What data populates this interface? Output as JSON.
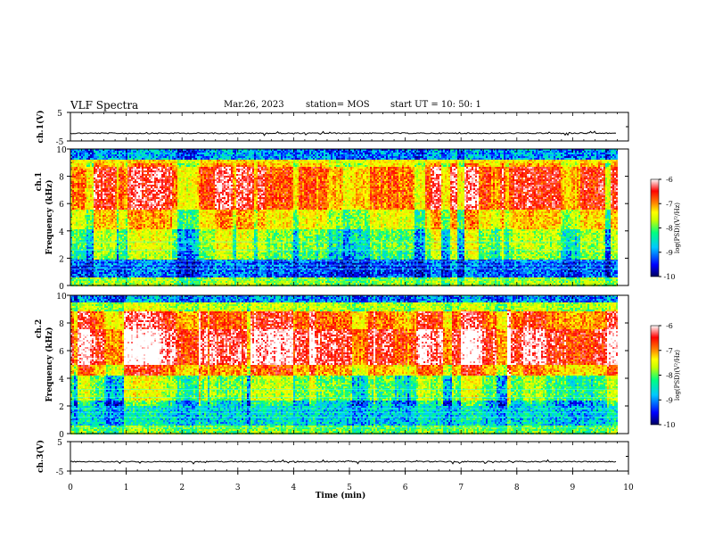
{
  "header": {
    "title": "VLF Spectra",
    "date": "Mar.26, 2023",
    "station": "station= MOS",
    "start": "start  UT =   10: 50: 1"
  },
  "chart_data": [
    {
      "type": "line",
      "id": "waveform-ch1",
      "ylabel": "ch.1(V)",
      "ylim": [
        -5,
        5
      ],
      "yticks": [
        5,
        -5
      ],
      "xlim": [
        0,
        10
      ],
      "baseline": -2.3,
      "xmax_data": 9.8
    },
    {
      "type": "heatmap",
      "id": "spectrogram-ch1",
      "ylabel": "ch.1",
      "ylabel2": "Frequency (kHz)",
      "ylim": [
        0,
        10
      ],
      "yticks": [
        0,
        2,
        4,
        6,
        8,
        10
      ],
      "xlim": [
        0,
        10
      ],
      "xmax_data": 9.8,
      "bands": [
        {
          "f0": 0.0,
          "f1": 0.6,
          "level": -8.2
        },
        {
          "f0": 0.6,
          "f1": 1.9,
          "level": -9.4
        },
        {
          "f0": 1.9,
          "f1": 2.6,
          "level": -8.6
        },
        {
          "f0": 2.6,
          "f1": 4.2,
          "level": -8.4
        },
        {
          "f0": 4.2,
          "f1": 5.6,
          "level": -7.8
        },
        {
          "f0": 5.6,
          "f1": 8.7,
          "level": -7.0
        },
        {
          "f0": 8.7,
          "f1": 9.3,
          "level": -7.6
        },
        {
          "f0": 9.3,
          "f1": 10.0,
          "level": -9.2
        }
      ],
      "colorbar": {
        "label": "log(PSD)(V²/Hz)",
        "ticks": [
          -6,
          -7,
          -8,
          -9,
          -10
        ],
        "range": [
          -10,
          -6
        ]
      }
    },
    {
      "type": "heatmap",
      "id": "spectrogram-ch2",
      "ylabel": "ch.2",
      "ylabel2": "Frequency (kHz)",
      "ylim": [
        0,
        10
      ],
      "yticks": [
        0,
        2,
        4,
        6,
        8,
        10
      ],
      "xlim": [
        0,
        10
      ],
      "xmax_data": 9.8,
      "bands": [
        {
          "f0": 0.0,
          "f1": 0.7,
          "level": -8.3
        },
        {
          "f0": 0.7,
          "f1": 2.4,
          "level": -8.9
        },
        {
          "f0": 2.4,
          "f1": 4.2,
          "level": -8.3
        },
        {
          "f0": 4.2,
          "f1": 5.0,
          "level": -7.2
        },
        {
          "f0": 5.0,
          "f1": 7.6,
          "level": -6.4
        },
        {
          "f0": 7.6,
          "f1": 8.9,
          "level": -6.9
        },
        {
          "f0": 8.9,
          "f1": 9.6,
          "level": -8.0
        },
        {
          "f0": 9.6,
          "f1": 10.0,
          "level": -9.2
        }
      ],
      "colorbar": {
        "label": "log(PSD)(V²/Hz)",
        "ticks": [
          -6,
          -7,
          -8,
          -9,
          -10
        ],
        "range": [
          -10,
          -6
        ]
      }
    },
    {
      "type": "line",
      "id": "waveform-ch3",
      "ylabel": "ch.3(V)",
      "ylim": [
        -5,
        5
      ],
      "yticks": [
        5,
        -5
      ],
      "xlim": [
        0,
        10
      ],
      "baseline": -1.8,
      "xmax_data": 9.8,
      "xlabel": "Time (min)",
      "xticks": [
        0,
        1,
        2,
        3,
        4,
        5,
        6,
        7,
        8,
        9,
        10
      ]
    }
  ],
  "colors": {
    "colormap": [
      "#000060",
      "#0000ff",
      "#00c8ff",
      "#00ff80",
      "#c8ff00",
      "#ffff00",
      "#ff8000",
      "#ff0000",
      "#ffffff"
    ]
  }
}
